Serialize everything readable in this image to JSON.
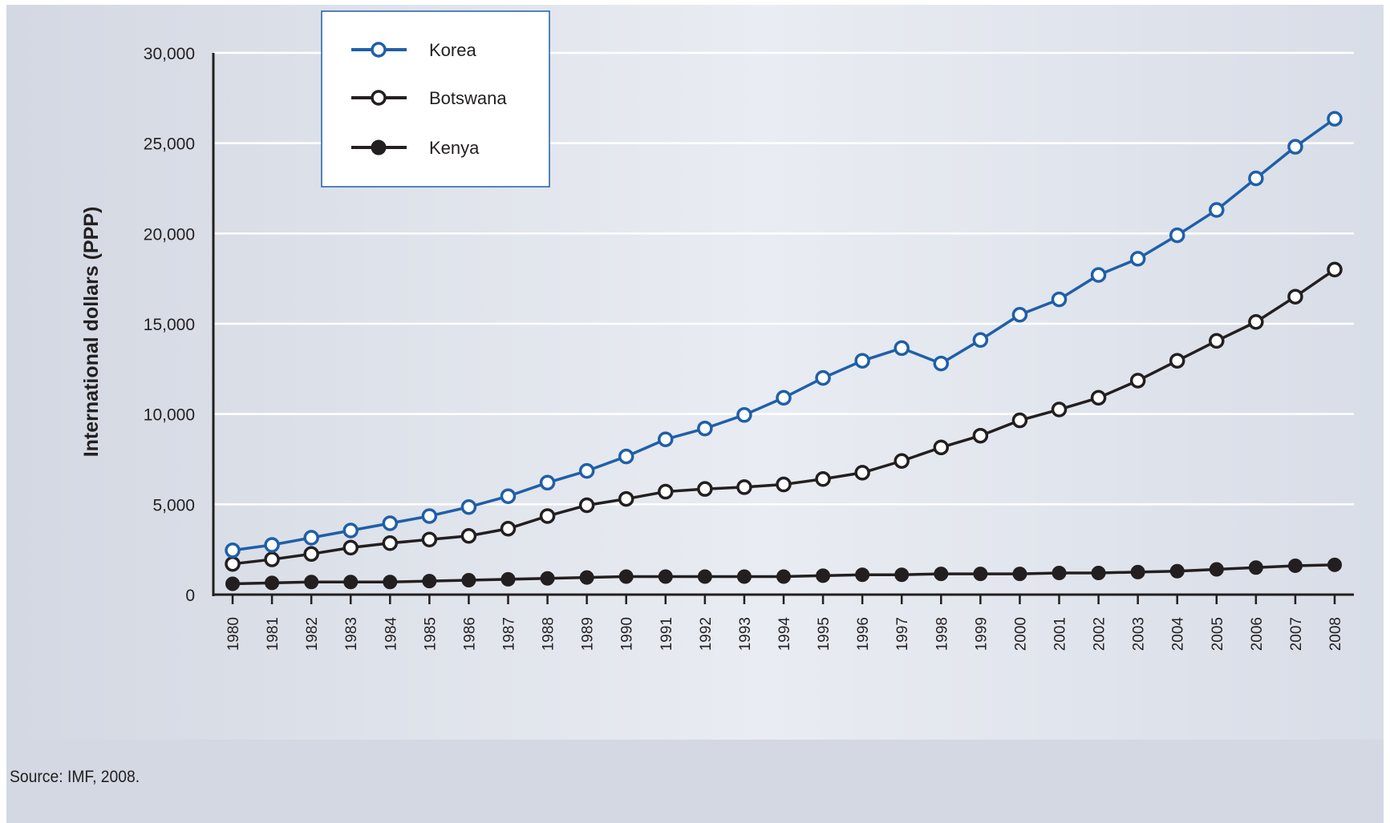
{
  "source_note": "Source: IMF, 2008.",
  "chart_data": {
    "type": "line",
    "title": "",
    "xlabel": "",
    "ylabel": "International dollars (PPP)",
    "ylim": [
      0,
      30000
    ],
    "yticks": [
      0,
      5000,
      10000,
      15000,
      20000,
      25000,
      30000
    ],
    "ytick_labels": [
      "0",
      "5,000",
      "10,000",
      "15,000",
      "20,000",
      "25,000",
      "30,000"
    ],
    "grid": "horizontal",
    "legend_position": "top-left",
    "x": [
      "1980",
      "1981",
      "1982",
      "1983",
      "1984",
      "1985",
      "1986",
      "1987",
      "1988",
      "1989",
      "1990",
      "1991",
      "1992",
      "1993",
      "1994",
      "1995",
      "1996",
      "1997",
      "1998",
      "1999",
      "2000",
      "2001",
      "2002",
      "2003",
      "2004",
      "2005",
      "2006",
      "2007",
      "2008"
    ],
    "series": [
      {
        "name": "Korea",
        "color": "#1f5fa8",
        "marker": "open-circle",
        "values": [
          2450,
          2750,
          3150,
          3550,
          3950,
          4350,
          4850,
          5450,
          6200,
          6850,
          7650,
          8600,
          9200,
          9950,
          10900,
          12000,
          12950,
          13650,
          12800,
          14100,
          15500,
          16350,
          17700,
          18600,
          19900,
          21300,
          23050,
          24800,
          26350
        ]
      },
      {
        "name": "Botswana",
        "color": "#231f20",
        "marker": "open-circle",
        "values": [
          1700,
          1950,
          2250,
          2600,
          2850,
          3050,
          3250,
          3650,
          4350,
          4950,
          5300,
          5700,
          5850,
          5950,
          6100,
          6400,
          6750,
          7400,
          8150,
          8800,
          9650,
          10250,
          10900,
          11850,
          12950,
          14050,
          15100,
          16500,
          18000
        ]
      },
      {
        "name": "Kenya",
        "color": "#231f20",
        "marker": "filled-circle",
        "values": [
          600,
          650,
          700,
          700,
          700,
          750,
          800,
          850,
          900,
          950,
          1000,
          1000,
          1000,
          1000,
          1000,
          1050,
          1100,
          1100,
          1150,
          1150,
          1150,
          1200,
          1200,
          1250,
          1300,
          1400,
          1500,
          1600,
          1650
        ]
      }
    ]
  }
}
